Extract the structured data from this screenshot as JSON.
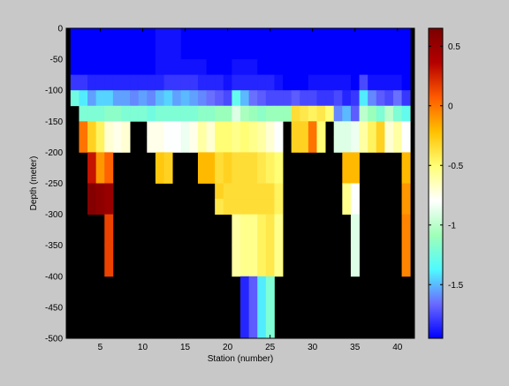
{
  "chart_data": {
    "type": "heatmap",
    "title": "",
    "xlabel": "Station (number)",
    "ylabel": "Depth (meter)",
    "xlim": [
      1,
      42
    ],
    "ylim": [
      -500,
      0
    ],
    "xticks": [
      5,
      10,
      15,
      20,
      25,
      30,
      35,
      40
    ],
    "yticks": [
      0,
      -50,
      -100,
      -150,
      -200,
      -250,
      -300,
      -350,
      -400,
      -450,
      -500
    ],
    "colorbar": {
      "range": [
        -1.95,
        0.65
      ],
      "ticks": [
        0.5,
        0,
        -0.5,
        -1,
        -1.5
      ],
      "colormap": [
        "#0000ff",
        "#6a6aff",
        "#4ffaff",
        "#9fffb7",
        "#ffffff",
        "#ffff77",
        "#ffc000",
        "#ff5a00",
        "#b40000",
        "#7a0000"
      ]
    },
    "no_data_color": "#000000",
    "depth_bins": [
      [
        0,
        -25
      ],
      [
        -25,
        -50
      ],
      [
        -50,
        -75
      ],
      [
        -75,
        -100
      ],
      [
        -100,
        -125
      ],
      [
        -125,
        -150
      ],
      [
        -150,
        -175
      ],
      [
        -175,
        -200
      ],
      [
        -200,
        -225
      ],
      [
        -225,
        -250
      ],
      [
        -250,
        -275
      ],
      [
        -275,
        -300
      ],
      [
        -300,
        -350
      ],
      [
        -350,
        -400
      ],
      [
        -400,
        -500
      ]
    ],
    "stations": [
      2,
      3,
      4,
      5,
      6,
      7,
      8,
      9,
      10,
      11,
      12,
      13,
      14,
      15,
      16,
      17,
      18,
      19,
      20,
      21,
      22,
      23,
      24,
      25,
      26,
      27,
      28,
      29,
      30,
      31,
      32,
      33,
      34,
      35,
      36,
      37,
      38,
      39,
      40,
      41
    ],
    "values": [
      [
        -1.95,
        -1.95,
        -1.95,
        -1.95,
        -1.95,
        -1.95,
        -1.95,
        -1.95,
        -1.95,
        -1.95,
        -1.9,
        -1.9,
        -1.9,
        -1.95,
        -1.95,
        -1.95,
        -1.95,
        -1.95,
        -1.95,
        -1.95,
        -1.95,
        -1.95,
        -1.95,
        -1.95,
        -1.95,
        -1.95,
        -1.95,
        -1.95,
        -1.95,
        -1.95,
        -1.95,
        -1.95,
        -1.95,
        -1.95,
        -1.95,
        -1.95,
        -1.95,
        -1.95,
        -1.95,
        -1.95
      ],
      [
        -1.95,
        -1.95,
        -1.95,
        -1.95,
        -1.95,
        -1.95,
        -1.95,
        -1.95,
        -1.95,
        -1.95,
        -1.9,
        -1.9,
        -1.9,
        -1.95,
        -1.95,
        -1.95,
        -1.95,
        -1.95,
        -1.95,
        -1.95,
        -1.95,
        -1.95,
        -1.95,
        -1.95,
        -1.95,
        -1.95,
        -1.95,
        -1.95,
        -1.95,
        -1.95,
        -1.95,
        -1.95,
        -1.95,
        -1.95,
        -1.95,
        -1.95,
        -1.95,
        -1.95,
        -1.95,
        -1.95
      ],
      [
        -1.95,
        -1.95,
        -1.95,
        -1.95,
        -1.95,
        -1.95,
        -1.95,
        -1.95,
        -1.95,
        -1.95,
        -1.9,
        -1.9,
        -1.9,
        -1.9,
        -1.9,
        -1.9,
        -1.95,
        -1.95,
        -1.95,
        -1.9,
        -1.9,
        -1.9,
        -1.95,
        -1.95,
        -1.95,
        -1.95,
        -1.95,
        -1.95,
        -1.95,
        -1.95,
        -1.95,
        -1.95,
        -1.95,
        -1.95,
        -1.95,
        -1.95,
        -1.95,
        -1.95,
        -1.95,
        -1.95
      ],
      [
        -1.8,
        -1.8,
        -1.85,
        -1.85,
        -1.85,
        -1.85,
        -1.85,
        -1.85,
        -1.85,
        -1.85,
        -1.85,
        -1.8,
        -1.8,
        -1.8,
        -1.8,
        -1.85,
        -1.85,
        -1.85,
        -1.9,
        -1.85,
        -1.85,
        -1.85,
        -1.85,
        -1.85,
        -1.9,
        -1.95,
        -1.95,
        -1.95,
        -1.9,
        -1.9,
        -1.9,
        -1.9,
        -1.9,
        -1.95,
        -1.75,
        -1.9,
        -1.9,
        -1.9,
        -1.9,
        -1.95
      ],
      [
        -1.25,
        -1.4,
        -1.55,
        -1.45,
        -1.45,
        -1.55,
        -1.55,
        -1.6,
        -1.55,
        -1.6,
        -1.5,
        -1.45,
        -1.55,
        -1.5,
        -1.55,
        -1.6,
        -1.65,
        -1.7,
        -1.75,
        -1.3,
        -1.5,
        -1.65,
        -1.7,
        -1.75,
        -1.75,
        -1.75,
        -1.7,
        -1.75,
        -1.75,
        -1.8,
        -1.8,
        -1.75,
        -1.85,
        -1.8,
        -1.4,
        -1.6,
        -1.7,
        -1.75,
        -1.65,
        -1.8
      ],
      [
        null,
        -1.2,
        -1.2,
        -1.2,
        -1.15,
        -1.15,
        -1.2,
        -1.2,
        -1.2,
        -1.25,
        -1.2,
        -1.2,
        -1.2,
        -1.2,
        -1.2,
        -1.15,
        -1.15,
        -1.1,
        -1.1,
        -0.9,
        -1.05,
        -1.1,
        -1.15,
        -1.1,
        -1.1,
        -1.1,
        -0.35,
        -0.4,
        -0.45,
        -0.4,
        -0.5,
        -1.6,
        -1.5,
        -1.7,
        -1.0,
        -1.1,
        -1.2,
        -1.0,
        -1.2,
        -1.3
      ],
      [
        null,
        0.0,
        -0.3,
        -0.45,
        -0.7,
        -0.75,
        -0.7,
        null,
        null,
        -0.75,
        -0.75,
        -0.8,
        -0.8,
        -0.85,
        -0.75,
        -0.6,
        -0.7,
        -0.5,
        -0.5,
        -0.55,
        -0.5,
        -0.55,
        -0.6,
        -0.7,
        -0.8,
        null,
        -0.3,
        -0.3,
        0.0,
        -0.5,
        null,
        -0.9,
        -0.9,
        -0.85,
        -0.6,
        -0.45,
        -0.3,
        -0.7,
        -0.6,
        -0.8
      ],
      [
        null,
        0.0,
        -0.3,
        -0.45,
        -0.7,
        -0.75,
        -0.7,
        null,
        null,
        -0.75,
        -0.75,
        -0.8,
        -0.8,
        -0.85,
        -0.75,
        -0.6,
        -0.7,
        -0.5,
        -0.5,
        -0.55,
        -0.5,
        -0.55,
        -0.6,
        -0.7,
        -0.8,
        null,
        -0.3,
        -0.3,
        0.0,
        -0.5,
        null,
        -0.9,
        -0.9,
        -0.85,
        -0.6,
        -0.45,
        -0.3,
        -0.7,
        -0.6,
        -0.8
      ],
      [
        null,
        null,
        0.3,
        -0.1,
        0.05,
        null,
        null,
        null,
        null,
        null,
        -0.25,
        -0.3,
        null,
        null,
        null,
        -0.2,
        -0.2,
        -0.35,
        -0.3,
        -0.35,
        -0.35,
        -0.35,
        -0.4,
        -0.45,
        -0.5,
        null,
        null,
        null,
        null,
        null,
        null,
        null,
        -0.2,
        -0.2,
        null,
        null,
        null,
        null,
        null,
        -0.2
      ],
      [
        null,
        null,
        0.3,
        -0.1,
        0.05,
        null,
        null,
        null,
        null,
        null,
        -0.25,
        -0.3,
        null,
        null,
        null,
        -0.2,
        -0.2,
        -0.35,
        -0.3,
        -0.35,
        -0.35,
        -0.35,
        -0.4,
        -0.45,
        -0.5,
        null,
        null,
        null,
        null,
        null,
        null,
        null,
        -0.2,
        -0.2,
        null,
        null,
        null,
        null,
        null,
        -0.2
      ],
      [
        null,
        null,
        0.6,
        0.55,
        0.5,
        null,
        null,
        null,
        null,
        null,
        null,
        null,
        null,
        null,
        null,
        null,
        null,
        -0.3,
        -0.35,
        -0.35,
        -0.35,
        -0.35,
        -0.35,
        -0.35,
        -0.45,
        null,
        null,
        null,
        null,
        null,
        null,
        null,
        -0.55,
        -0.8,
        null,
        null,
        null,
        null,
        null,
        -0.1
      ],
      [
        null,
        null,
        0.6,
        0.55,
        0.5,
        null,
        null,
        null,
        null,
        null,
        null,
        null,
        null,
        null,
        null,
        null,
        null,
        -0.4,
        -0.35,
        -0.35,
        -0.35,
        -0.35,
        -0.35,
        -0.35,
        -0.45,
        null,
        null,
        null,
        null,
        null,
        null,
        null,
        -0.55,
        -0.8,
        null,
        null,
        null,
        null,
        null,
        -0.1
      ],
      [
        null,
        null,
        null,
        null,
        0.15,
        null,
        null,
        null,
        null,
        null,
        null,
        null,
        null,
        null,
        null,
        null,
        null,
        null,
        null,
        -0.6,
        -0.55,
        -0.55,
        -0.45,
        -0.4,
        -0.55,
        null,
        null,
        null,
        null,
        null,
        null,
        null,
        null,
        -0.9,
        null,
        null,
        null,
        null,
        null,
        -0.05
      ],
      [
        null,
        null,
        null,
        null,
        0.15,
        null,
        null,
        null,
        null,
        null,
        null,
        null,
        null,
        null,
        null,
        null,
        null,
        null,
        null,
        -0.6,
        -0.55,
        -0.55,
        -0.45,
        -0.4,
        -0.55,
        null,
        null,
        null,
        null,
        null,
        null,
        null,
        null,
        -0.9,
        null,
        null,
        null,
        null,
        null,
        -0.05
      ],
      [
        null,
        null,
        null,
        null,
        null,
        null,
        null,
        null,
        null,
        null,
        null,
        null,
        null,
        null,
        null,
        null,
        null,
        null,
        null,
        null,
        -1.85,
        -1.7,
        -1.4,
        -1.2,
        null,
        null,
        null,
        null,
        null,
        null,
        null,
        null,
        null,
        null,
        null,
        null,
        null,
        null,
        null,
        null
      ]
    ]
  }
}
